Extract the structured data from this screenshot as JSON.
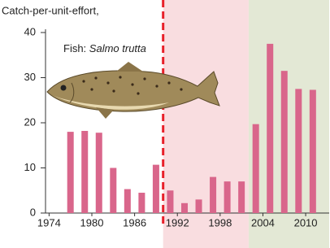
{
  "chart_data": {
    "type": "bar",
    "title": "Catch-per-unit-effort,",
    "annotation": {
      "prefix": "Fish:",
      "species": "Salmo trutta"
    },
    "x": [
      1977,
      1979,
      1981,
      1983,
      1985,
      1987,
      1989,
      1991,
      1993,
      1995,
      1997,
      1999,
      2001,
      2003,
      2005,
      2007,
      2009,
      2011
    ],
    "values": [
      18,
      18.2,
      17.8,
      10,
      5.3,
      4.5,
      10.7,
      5,
      2.2,
      3,
      8,
      7,
      7,
      19.7,
      37.5,
      31.5,
      27.5,
      27.3
    ],
    "color": "#d9668b",
    "xlim": [
      1973.5,
      2013.3
    ],
    "xticks": [
      1974,
      1980,
      1986,
      1992,
      1998,
      2004,
      2010
    ],
    "ylim": [
      0,
      40
    ],
    "yticks": [
      0,
      10,
      20,
      30,
      40
    ],
    "regions": [
      {
        "from": 1990,
        "to": 2002,
        "color": "#f9dde0"
      },
      {
        "from": 2002,
        "to": 2013.3,
        "color": "#e3e8d5"
      }
    ],
    "vline": {
      "x": 1990,
      "color": "#e8202a"
    },
    "grid": false
  }
}
